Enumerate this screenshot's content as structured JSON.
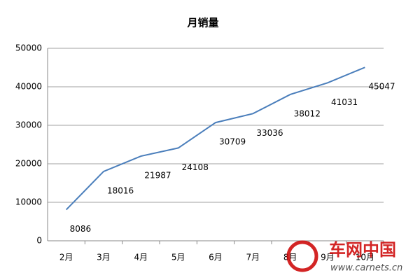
{
  "chart_data": {
    "type": "line",
    "title": "月销量",
    "categories": [
      "2月",
      "3月",
      "4月",
      "5月",
      "6月",
      "7月",
      "8月",
      "9月",
      "10月"
    ],
    "values": [
      8086,
      18016,
      21987,
      24108,
      30709,
      33036,
      38012,
      41031,
      45047
    ],
    "color": "#4a7ebb",
    "ylim": [
      0,
      50000
    ],
    "yticks": [
      0,
      10000,
      20000,
      30000,
      40000,
      50000
    ],
    "grid": true,
    "watermark": {
      "brand": "车网中国",
      "url": "www.carnets.cn"
    }
  }
}
